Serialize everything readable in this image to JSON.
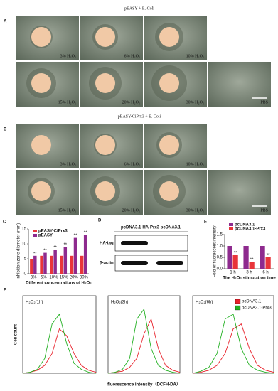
{
  "panels": [
    {
      "label": "A",
      "title": "pEASY + E. Coli",
      "photos": [
        "3% H₂O₂",
        "6% H₂O₂",
        "10% H₂O₂",
        "15% H₂O₂",
        "20% H₂O₂",
        "30% H₂O₂",
        "PBS"
      ]
    },
    {
      "label": "B",
      "title": "pEASY-CiPrx3 + E. Coli",
      "photos": [
        "3% H₂O₂",
        "6% H₂O₂",
        "10% H₂O₂",
        "15% H₂O₂",
        "20% H₂O₂",
        "30% H₂O₂",
        "PBS"
      ]
    }
  ],
  "blot": {
    "label": "D",
    "header": "pcDNA3.1-HA-Prx3 pcDNA3.1",
    "rows": [
      "HA-tag",
      "β-actin"
    ]
  },
  "chart_data": [
    {
      "type": "bar",
      "panel_label": "C",
      "y_label": "Inhibition zone diameter (mm)",
      "x_label": "Different concentrations of H₂O₂",
      "categories": [
        "3%",
        "6%",
        "10%",
        "15%",
        "20%",
        "30%"
      ],
      "series": [
        {
          "name": "pEASY-CiPrx3",
          "color": "#e8353a",
          "values": [
            5,
            6,
            6,
            6,
            6,
            6
          ]
        },
        {
          "name": "pEASY",
          "color": "#8e2a8e",
          "values": [
            6,
            7,
            8,
            9,
            12,
            13
          ]
        }
      ],
      "significance": [
        "**",
        "**",
        "**",
        "**",
        "**",
        "**"
      ],
      "ylim": [
        0,
        15
      ],
      "yticks": [
        0,
        5,
        10,
        15
      ]
    },
    {
      "type": "bar",
      "panel_label": "E",
      "y_label": "Fold of fluorescent intensity",
      "x_label": "The H₂O₂ stimulation time",
      "categories": [
        "1 h",
        "3 h",
        "6 h"
      ],
      "series": [
        {
          "name": "pcDNA3.1",
          "color": "#8e2a8e",
          "values": [
            1.0,
            1.0,
            1.0
          ]
        },
        {
          "name": "pcDNA3.1-Prx3",
          "color": "#e8353a",
          "values": [
            0.6,
            0.3,
            0.5
          ]
        }
      ],
      "significance": [
        "**",
        "**",
        "**"
      ],
      "ylim": [
        0,
        1.5
      ],
      "yticks": [
        {
          "value": 0,
          "label": "0.0"
        },
        0.5,
        {
          "value": 1,
          "label": "1.0"
        },
        1.5
      ]
    },
    {
      "type": "line",
      "panel_label": "F",
      "title": "H₂O₂(1h)",
      "y_label": "Cell count",
      "x": [
        0,
        10,
        20,
        30,
        40,
        50,
        60,
        70,
        80,
        90,
        100
      ],
      "series": [
        {
          "color": "#e8202a",
          "values": [
            0,
            1,
            3,
            8,
            20,
            45,
            38,
            20,
            8,
            3,
            1
          ]
        },
        {
          "color": "#22b022",
          "values": [
            0,
            1,
            4,
            15,
            50,
            60,
            30,
            10,
            4,
            1,
            0
          ]
        }
      ],
      "xlim": [
        0,
        100
      ],
      "ylim": [
        0,
        70
      ]
    },
    {
      "type": "line",
      "title": "H₂O₂(3h)",
      "x_label": "fluorescence intensity（DCFH-DA）",
      "x": [
        0,
        10,
        20,
        30,
        40,
        50,
        60,
        70,
        80,
        90,
        100
      ],
      "series": [
        {
          "color": "#e8202a",
          "values": [
            0,
            1,
            2,
            6,
            15,
            40,
            55,
            25,
            8,
            3,
            1
          ]
        },
        {
          "color": "#22b022",
          "values": [
            0,
            1,
            4,
            15,
            55,
            65,
            25,
            8,
            3,
            1,
            0
          ]
        }
      ],
      "xlim": [
        0,
        100
      ],
      "ylim": [
        0,
        70
      ]
    },
    {
      "type": "line",
      "title": "H₂O₂(6h)",
      "x": [
        0,
        10,
        20,
        30,
        40,
        50,
        60,
        70,
        80,
        90,
        100
      ],
      "series": [
        {
          "name": "pcDNA3.1",
          "color": "#e8202a",
          "values": [
            0,
            1,
            3,
            8,
            20,
            45,
            50,
            25,
            8,
            3,
            1
          ]
        },
        {
          "name": "pcDNA3.1-Prx3",
          "color": "#22b022",
          "values": [
            0,
            2,
            6,
            20,
            55,
            60,
            25,
            8,
            3,
            1,
            0
          ]
        }
      ],
      "xlim": [
        0,
        100
      ],
      "ylim": [
        0,
        70
      ]
    }
  ]
}
